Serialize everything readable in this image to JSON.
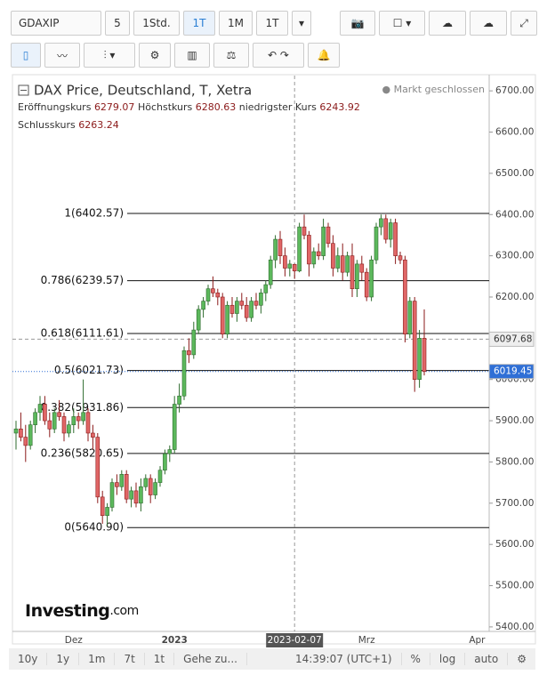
{
  "toolbar": {
    "symbol": "GDAXIP",
    "intervals": [
      "5",
      "1Std.",
      "1T",
      "1M"
    ],
    "range": "1T"
  },
  "legend": {
    "title": "DAX Price, Deutschland, T, Xetra",
    "status": "Markt geschlossen",
    "open_label": "Eröffnungskurs",
    "high_label": "Höchstkurs",
    "low_label": "niedrigster Kurs",
    "close_label": "Schlusskurs"
  },
  "watermark": {
    "main": "Investing",
    "suffix": ".com"
  },
  "bottom_bar": {
    "ranges": [
      "10y",
      "1y",
      "1m",
      "7t",
      "1t"
    ],
    "goto": "Gehe zu...",
    "time": "14:39:07 (UTC+1)",
    "options": [
      "%",
      "log",
      "auto"
    ]
  },
  "chart_data": {
    "type": "candlestick",
    "categories": [
      null,
      null,
      null,
      null,
      null,
      null,
      null,
      null,
      null,
      null,
      null,
      null,
      "Dez",
      null,
      null,
      null,
      null,
      null,
      null,
      null,
      null,
      null,
      null,
      null,
      null,
      null,
      null,
      null,
      null,
      null,
      null,
      null,
      null,
      "2023",
      null,
      null,
      null,
      null,
      null,
      null,
      null,
      null,
      null,
      null,
      null,
      null,
      null,
      null,
      null,
      null,
      null,
      null,
      null,
      null,
      null,
      null,
      null,
      null,
      "2023-02-07",
      null,
      null,
      null,
      null,
      null,
      null,
      null,
      null,
      null,
      null,
      null,
      null,
      null,
      null,
      "Mrz",
      null,
      null,
      null,
      null,
      null,
      null,
      null,
      null,
      null,
      null,
      null,
      null,
      null,
      null,
      null,
      null,
      null,
      null,
      null,
      null,
      null,
      null,
      "Apr"
    ],
    "open": [
      5870,
      5880,
      5860,
      5840,
      5890,
      5920,
      5940,
      5900,
      5880,
      5920,
      5910,
      5870,
      5890,
      5910,
      5900,
      5920,
      5870,
      5860,
      5715,
      5670,
      5690,
      5750,
      5740,
      5770,
      5710,
      5730,
      5700,
      5740,
      5760,
      5720,
      5750,
      5780,
      5820,
      5830,
      5940,
      5960,
      6070,
      6060,
      6120,
      6170,
      6190,
      6220,
      6210,
      6200,
      6110,
      6180,
      6160,
      6190,
      6180,
      6150,
      6190,
      6180,
      6210,
      6230,
      6290,
      6340,
      6300,
      6270,
      6279.07,
      6263,
      6370,
      6350,
      6280,
      6310,
      6300,
      6370,
      6330,
      6270,
      6300,
      6260,
      6300,
      6220,
      6280,
      6260,
      6200,
      6290,
      6370,
      6390,
      6340,
      6380,
      6300,
      6290,
      6110,
      6190,
      6000,
      6100,
      null,
      null,
      null,
      null,
      null,
      null,
      null,
      null,
      null,
      null,
      null
    ],
    "high": [
      5900,
      5920,
      5890,
      5900,
      5930,
      5960,
      5960,
      5920,
      5930,
      5950,
      5920,
      5900,
      5930,
      5920,
      6000,
      5930,
      5890,
      5870,
      5730,
      5700,
      5760,
      5770,
      5780,
      5780,
      5740,
      5750,
      5760,
      5770,
      5770,
      5760,
      5790,
      5830,
      5840,
      5960,
      5990,
      6080,
      6100,
      6140,
      6180,
      6200,
      6230,
      6250,
      6220,
      6210,
      6190,
      6200,
      6200,
      6210,
      6200,
      6200,
      6210,
      6220,
      6240,
      6300,
      6350,
      6360,
      6320,
      6290,
      6280.63,
      6380,
      6400,
      6360,
      6320,
      6330,
      6390,
      6380,
      6350,
      6320,
      6330,
      6310,
      6330,
      6290,
      6300,
      6270,
      6300,
      6380,
      6400,
      6400,
      6390,
      6390,
      6310,
      6300,
      6200,
      6200,
      6120,
      6170,
      null,
      null,
      null,
      null,
      null,
      null,
      null,
      null,
      null,
      null,
      null
    ],
    "low": [
      5830,
      5850,
      5800,
      5830,
      5870,
      5900,
      5890,
      5860,
      5870,
      5900,
      5850,
      5860,
      5870,
      5880,
      5890,
      5850,
      5830,
      5700,
      5650,
      5645,
      5680,
      5720,
      5730,
      5700,
      5690,
      5690,
      5680,
      5730,
      5700,
      5710,
      5740,
      5770,
      5800,
      5820,
      5920,
      5950,
      6040,
      6050,
      6110,
      6150,
      6180,
      6200,
      6180,
      6100,
      6100,
      6150,
      6140,
      6170,
      6140,
      6140,
      6170,
      6160,
      6190,
      6220,
      6270,
      6280,
      6250,
      6250,
      6243.92,
      6260,
      6340,
      6250,
      6270,
      6290,
      6290,
      6320,
      6250,
      6260,
      6240,
      6250,
      6200,
      6200,
      6240,
      6190,
      6190,
      6280,
      6350,
      6330,
      6320,
      6280,
      6280,
      6090,
      6100,
      5970,
      5980,
      6010,
      null,
      null,
      null,
      null,
      null,
      null,
      null,
      null,
      null,
      null,
      null
    ],
    "close": [
      5880,
      5860,
      5840,
      5890,
      5920,
      5940,
      5900,
      5880,
      5920,
      5910,
      5870,
      5890,
      5910,
      5900,
      5920,
      5870,
      5860,
      5715,
      5670,
      5690,
      5750,
      5740,
      5770,
      5710,
      5730,
      5700,
      5740,
      5760,
      5720,
      5750,
      5780,
      5820,
      5830,
      5940,
      5960,
      6070,
      6060,
      6120,
      6170,
      6190,
      6220,
      6210,
      6200,
      6110,
      6180,
      6160,
      6190,
      6180,
      6150,
      6190,
      6180,
      6210,
      6230,
      6290,
      6340,
      6300,
      6270,
      6280,
      6263.24,
      6370,
      6350,
      6280,
      6310,
      6300,
      6370,
      6330,
      6270,
      6300,
      6260,
      6300,
      6220,
      6280,
      6260,
      6200,
      6290,
      6370,
      6390,
      6340,
      6380,
      6300,
      6290,
      6110,
      6190,
      6000,
      6100,
      6019.45,
      null,
      null,
      null,
      null,
      null,
      null,
      null,
      null,
      null,
      null,
      null
    ],
    "up_color": "#5cb85c",
    "up_border": "#2e6b2e",
    "down_color": "#e06666",
    "down_border": "#8b1a1a",
    "ylim": [
      5389,
      6737
    ],
    "yticks": [
      {
        "value": 5400,
        "label": "5400.00"
      },
      {
        "value": 5500,
        "label": "5500.00"
      },
      {
        "value": 5600,
        "label": "5600.00"
      },
      {
        "value": 5700,
        "label": "5700.00"
      },
      {
        "value": 5800,
        "label": "5800.00"
      },
      {
        "value": 5900,
        "label": "5900.00"
      },
      {
        "value": 6000,
        "label": "6000.00"
      },
      {
        "value": 6100,
        "label": "6100.00"
      },
      {
        "value": 6200,
        "label": "6200.00"
      },
      {
        "value": 6300,
        "label": "6300.00"
      },
      {
        "value": 6400,
        "label": "6400.00"
      },
      {
        "value": 6500,
        "label": "6500.00"
      },
      {
        "value": 6600,
        "label": "6600.00"
      },
      {
        "value": 6700,
        "label": "6700.00"
      }
    ],
    "grid": false,
    "fib_levels": [
      {
        "value": 6402.57,
        "label": "1(6402.57)"
      },
      {
        "value": 6239.57,
        "label": "0.786(6239.57)"
      },
      {
        "value": 6111.61,
        "label": "0.618(6111.61)"
      },
      {
        "value": 6021.73,
        "label": "0.5(6021.73)"
      },
      {
        "value": 5931.86,
        "label": "0.382(5931.86)"
      },
      {
        "value": 5820.65,
        "label": "0.236(5820.65)"
      },
      {
        "value": 5640.9,
        "label": "0(5640.90)"
      }
    ],
    "price_tags": [
      {
        "value": 6097.68,
        "color": "#eeeeee",
        "text_color": "#333333"
      },
      {
        "value": 6019.45,
        "color": "#2f6fd6",
        "text_color": "#ffffff"
      }
    ]
  }
}
